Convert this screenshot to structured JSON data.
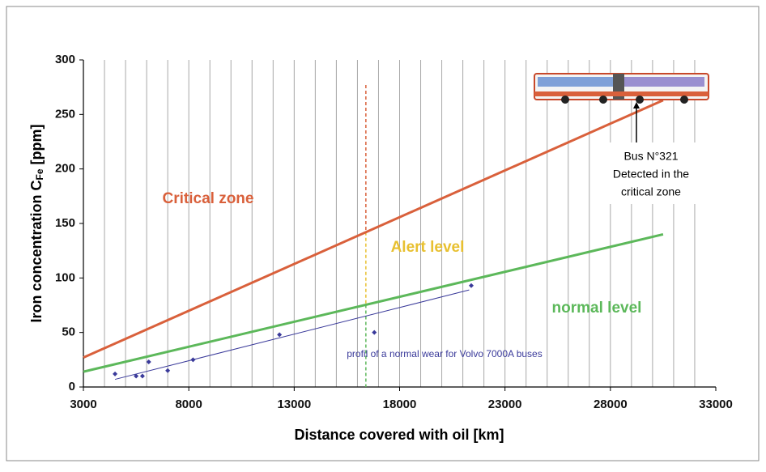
{
  "chart_data": {
    "type": "line",
    "x_label": "Distance covered with oil [km]",
    "y_label": {
      "text": "Iron concentration C",
      "sub": "Fe",
      "rest": " [ppm]"
    },
    "xlim": [
      3000,
      33000
    ],
    "xticks": [
      3000,
      8000,
      13000,
      18000,
      23000,
      28000,
      33000
    ],
    "x_grid_step": 1000,
    "ylim": [
      0,
      300
    ],
    "yticks": [
      0,
      50,
      100,
      150,
      200,
      250,
      300
    ],
    "grid": true,
    "series": [
      {
        "color": "#d9603b",
        "x": [
          3000,
          30500
        ],
        "values": [
          27,
          263
        ]
      },
      {
        "color": "#5cb85a",
        "x": [
          3000,
          30500
        ],
        "values": [
          14,
          140
        ]
      },
      {
        "color": "#3a3a9a",
        "x": [
          4500,
          21300
        ],
        "values": [
          7,
          89
        ]
      },
      {
        "color": "#3a3a9a",
        "marker": true,
        "x": [
          4500,
          5500,
          5800,
          6100,
          7000,
          8200,
          12300,
          16800,
          21400
        ],
        "values": [
          12,
          10,
          10,
          23,
          15,
          25,
          48,
          50,
          93
        ]
      }
    ],
    "alert_x": 16400,
    "alert_top": 277,
    "annotations": {
      "critical": "Critical zone",
      "alert": "Alert level",
      "normal": "normal level",
      "profile": "profil of a normal wear for Volvo 7000A buses",
      "bus": [
        "Bus N°321",
        "Detected in the",
        "critical zone"
      ]
    }
  }
}
